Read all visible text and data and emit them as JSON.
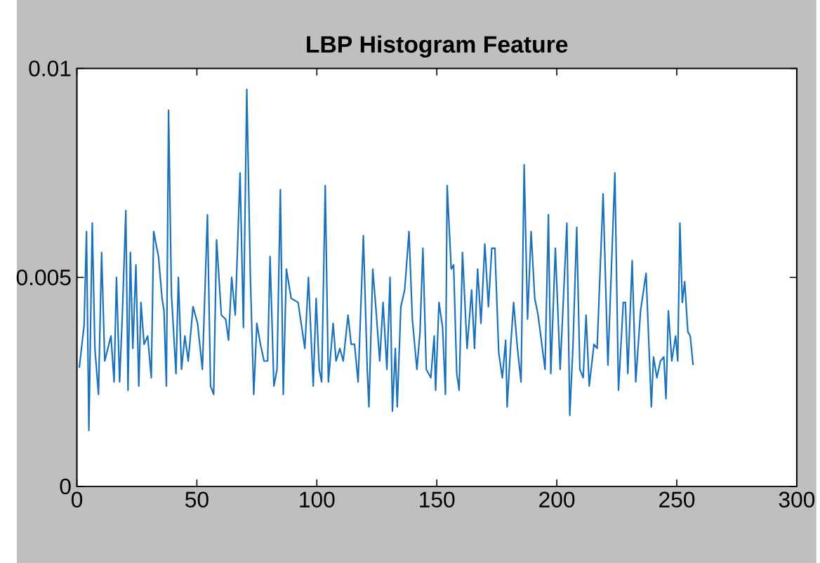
{
  "chart_data": {
    "type": "line",
    "title": "LBP Histogram Feature",
    "xlim": [
      0,
      300
    ],
    "ylim": [
      0,
      0.01
    ],
    "xticks": [
      0,
      50,
      100,
      150,
      200,
      250,
      300
    ],
    "yticks": [
      0,
      {
        "value": 0.005,
        "label": "0.005"
      },
      0.01
    ],
    "grid": false,
    "marker": "none",
    "line_style": "solid",
    "series": [
      {
        "color": "#1a72bd",
        "x": [
          1,
          3,
          4,
          5,
          6.4,
          7.5,
          9,
          10.3,
          11.6,
          14.2,
          15.5,
          16.5,
          17.8,
          19,
          20.4,
          21.3,
          22.3,
          23.3,
          24.6,
          25.8,
          26.7,
          28,
          29.5,
          31,
          32,
          34,
          35.5,
          36.3,
          37.3,
          38.2,
          39.4,
          41.3,
          42.3,
          43.6,
          45,
          46.4,
          48.4,
          50.3,
          52.3,
          54.4,
          55.7,
          57,
          58.2,
          60.2,
          62,
          63.2,
          64.5,
          66,
          68,
          69.4,
          70.8,
          72.3,
          73.7,
          75,
          76.5,
          78,
          79.5,
          80.5,
          82.1,
          83.4,
          84.8,
          86,
          87.3,
          89.3,
          92.2,
          95,
          96.5,
          98.5,
          99.7,
          101,
          102,
          103.5,
          104.8,
          106.8,
          108,
          109.6,
          111,
          113,
          114.3,
          115.7,
          117.2,
          119.4,
          121,
          121.7,
          123.3,
          124.7,
          126.2,
          127.6,
          129.2,
          130.5,
          131.5,
          132.7,
          133.5,
          135,
          136.6,
          138.4,
          139.8,
          141.7,
          143,
          144.2,
          145.6,
          147.5,
          148.9,
          149.5,
          150.9,
          152.4,
          153.6,
          154.3,
          156,
          157,
          158.3,
          159.3,
          160.7,
          162.6,
          164.5,
          165.7,
          167,
          168.4,
          170,
          171.5,
          172.9,
          174.2,
          175.8,
          177.3,
          178.7,
          179.3,
          180.7,
          182,
          183.6,
          185.1,
          186.4,
          187.8,
          189.3,
          190.8,
          192.2,
          195.1,
          196.5,
          197.5,
          199.4,
          201.4,
          204.2,
          205.4,
          206.7,
          208.3,
          209.6,
          211,
          212.2,
          213.5,
          215.5,
          216.8,
          219.3,
          221.3,
          224.2,
          225.7,
          227.7,
          228.6,
          229.6,
          231.4,
          232.9,
          234.9,
          237.2,
          239.4,
          240.3,
          241.7,
          243.2,
          244.6,
          245.5,
          246.5,
          247.9,
          249.5,
          250.4,
          251.3,
          252.3,
          253.3,
          254.6,
          255.6,
          256.8
        ],
        "values": [
          0.00284,
          0.00385,
          0.0061,
          0.00134,
          0.0063,
          0.0033,
          0.0022,
          0.0056,
          0.003,
          0.0036,
          0.0025,
          0.005,
          0.0025,
          0.0042,
          0.0066,
          0.0023,
          0.0056,
          0.0033,
          0.0053,
          0.0024,
          0.0044,
          0.0034,
          0.0036,
          0.0026,
          0.0061,
          0.0055,
          0.0045,
          0.0042,
          0.0024,
          0.009,
          0.0046,
          0.0027,
          0.005,
          0.0028,
          0.0036,
          0.003,
          0.0043,
          0.0039,
          0.0028,
          0.0065,
          0.0024,
          0.0022,
          0.0059,
          0.0041,
          0.004,
          0.0035,
          0.005,
          0.0041,
          0.0075,
          0.0038,
          0.0095,
          0.005,
          0.0022,
          0.0039,
          0.0034,
          0.003,
          0.003,
          0.0055,
          0.0024,
          0.0028,
          0.0071,
          0.0022,
          0.0052,
          0.0045,
          0.0044,
          0.0033,
          0.005,
          0.0024,
          0.0045,
          0.0028,
          0.0025,
          0.0072,
          0.0025,
          0.0039,
          0.003,
          0.0033,
          0.003,
          0.0041,
          0.0034,
          0.0034,
          0.0025,
          0.006,
          0.0028,
          0.0019,
          0.0052,
          0.0042,
          0.003,
          0.0044,
          0.0028,
          0.005,
          0.0018,
          0.0033,
          0.0019,
          0.0043,
          0.0047,
          0.0061,
          0.004,
          0.0028,
          0.0037,
          0.0057,
          0.0028,
          0.0026,
          0.0036,
          0.0023,
          0.0044,
          0.0038,
          0.0022,
          0.0072,
          0.0052,
          0.0053,
          0.0027,
          0.0023,
          0.0056,
          0.0033,
          0.0047,
          0.0033,
          0.0052,
          0.0039,
          0.0058,
          0.0043,
          0.0057,
          0.0057,
          0.0032,
          0.0026,
          0.0035,
          0.0019,
          0.0033,
          0.0044,
          0.0033,
          0.0025,
          0.0077,
          0.004,
          0.0061,
          0.0045,
          0.0041,
          0.0028,
          0.0065,
          0.0027,
          0.0057,
          0.0028,
          0.0063,
          0.0017,
          0.0033,
          0.0062,
          0.0028,
          0.0026,
          0.0041,
          0.0024,
          0.0034,
          0.0033,
          0.007,
          0.0029,
          0.0075,
          0.0023,
          0.0044,
          0.0044,
          0.0027,
          0.0054,
          0.0025,
          0.0042,
          0.0051,
          0.0019,
          0.0031,
          0.0026,
          0.003,
          0.0031,
          0.0021,
          0.0042,
          0.003,
          0.0036,
          0.003,
          0.0063,
          0.0044,
          0.0049,
          0.0037,
          0.0036,
          0.0029
        ]
      }
    ]
  }
}
